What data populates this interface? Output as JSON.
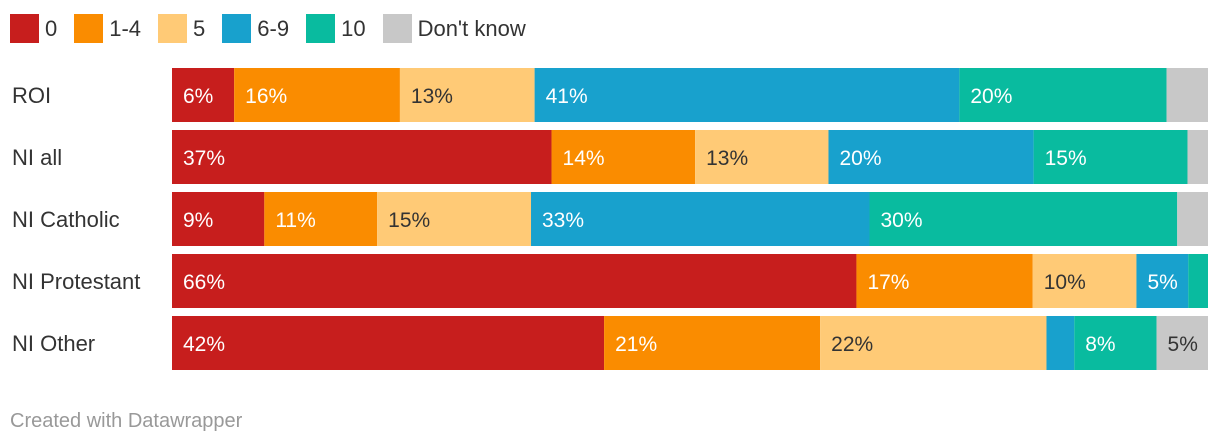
{
  "chart_data": {
    "type": "bar",
    "orientation": "horizontal",
    "stacked": true,
    "normalized": true,
    "legend_position": "top",
    "categories": [
      "ROI",
      "NI all",
      "NI Catholic",
      "NI Protestant",
      "NI Other"
    ],
    "series": [
      {
        "name": "0",
        "color": "#c71e1d",
        "values": [
          6,
          37,
          9,
          66,
          42
        ],
        "labels": [
          "6%",
          "37%",
          "9%",
          "66%",
          "42%"
        ],
        "label_color": "#ffffff"
      },
      {
        "name": "1-4",
        "color": "#fa8c00",
        "values": [
          16,
          14,
          11,
          17,
          21
        ],
        "labels": [
          "16%",
          "14%",
          "11%",
          "17%",
          "21%"
        ],
        "label_color": "#ffffff"
      },
      {
        "name": "5",
        "color": "#ffca76",
        "values": [
          13,
          13,
          15,
          10,
          22
        ],
        "labels": [
          "13%",
          "13%",
          "15%",
          "10%",
          "22%"
        ],
        "label_color": "#333333"
      },
      {
        "name": "6-9",
        "color": "#18a1cd",
        "values": [
          41,
          20,
          33,
          5,
          2.7
        ],
        "labels": [
          "41%",
          "20%",
          "33%",
          "5%",
          ""
        ],
        "label_color": "#ffffff"
      },
      {
        "name": "10",
        "color": "#09bb9f",
        "values": [
          20,
          15,
          30,
          1.9,
          8
        ],
        "labels": [
          "20%",
          "15%",
          "30%",
          "",
          "8%"
        ],
        "label_color": "#ffffff"
      },
      {
        "name": "Don't know",
        "color": "#c8c8c8",
        "values": [
          4,
          2,
          3,
          0,
          5
        ],
        "labels": [
          "",
          "",
          "",
          "",
          "5%"
        ],
        "label_color": "#333333"
      }
    ]
  },
  "footer": "Created with Datawrapper"
}
